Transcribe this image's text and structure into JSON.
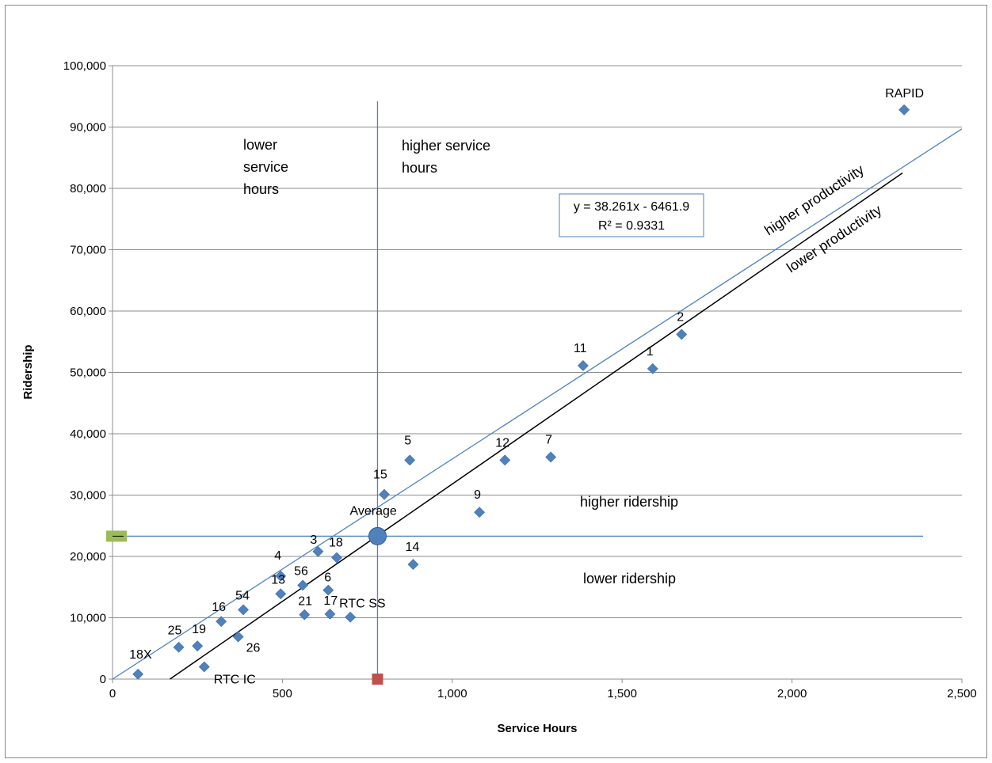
{
  "chart_data": {
    "type": "scatter",
    "xlabel": "Service Hours",
    "ylabel": "Ridership",
    "xlim": [
      0,
      2500
    ],
    "ylim": [
      0,
      100000
    ],
    "xticks": [
      0,
      500,
      1000,
      1500,
      2000,
      2500
    ],
    "xtick_labels": [
      "0",
      "500",
      "1,000",
      "1,500",
      "2,000",
      "2,500"
    ],
    "yticks": [
      0,
      10000,
      20000,
      30000,
      40000,
      50000,
      60000,
      70000,
      80000,
      90000,
      100000
    ],
    "ytick_labels": [
      "0",
      "10,000",
      "20,000",
      "30,000",
      "40,000",
      "50,000",
      "60,000",
      "70,000",
      "80,000",
      "90,000",
      "100,000"
    ],
    "grid": "horizontal",
    "colors": {
      "points": "#4f81bd",
      "reference_lines": "#4f81bd",
      "trendline": "#000000",
      "average_y_marker": "#9bbb59",
      "average_x_marker": "#c0504d"
    },
    "points": [
      {
        "label": "RAPID",
        "x": 2330,
        "y": 92800
      },
      {
        "label": "2",
        "x": 1675,
        "y": 56200
      },
      {
        "label": "1",
        "x": 1590,
        "y": 50600
      },
      {
        "label": "11",
        "x": 1385,
        "y": 51100
      },
      {
        "label": "7",
        "x": 1290,
        "y": 36200
      },
      {
        "label": "12",
        "x": 1155,
        "y": 35700
      },
      {
        "label": "9",
        "x": 1080,
        "y": 27200
      },
      {
        "label": "5",
        "x": 875,
        "y": 35700
      },
      {
        "label": "15",
        "x": 800,
        "y": 30100
      },
      {
        "label": "14",
        "x": 885,
        "y": 18700
      },
      {
        "label": "3",
        "x": 605,
        "y": 20800
      },
      {
        "label": "18",
        "x": 660,
        "y": 19800
      },
      {
        "label": "4",
        "x": 495,
        "y": 16800
      },
      {
        "label": "13",
        "x": 495,
        "y": 13900
      },
      {
        "label": "56",
        "x": 560,
        "y": 15300
      },
      {
        "label": "6",
        "x": 635,
        "y": 14500
      },
      {
        "label": "54",
        "x": 385,
        "y": 11300
      },
      {
        "label": "16",
        "x": 320,
        "y": 9400
      },
      {
        "label": "21",
        "x": 565,
        "y": 10500
      },
      {
        "label": "17",
        "x": 640,
        "y": 10600
      },
      {
        "label": "RTC SS",
        "x": 700,
        "y": 10100
      },
      {
        "label": "26",
        "x": 370,
        "y": 6900
      },
      {
        "label": "19",
        "x": 250,
        "y": 5400
      },
      {
        "label": "25",
        "x": 195,
        "y": 5200
      },
      {
        "label": "RTC IC",
        "x": 270,
        "y": 2000
      },
      {
        "label": "18X",
        "x": 75,
        "y": 800
      }
    ],
    "average": {
      "label": "Average",
      "x": 780,
      "y": 23300
    },
    "trendline": {
      "slope": 38.261,
      "intercept": -6461.9,
      "x_start": 169,
      "x_end": 2325
    },
    "upper_line": {
      "x_start": 0,
      "y_start": 0,
      "x_end": 2500,
      "y_end": 89700
    },
    "equation_text": "y = 38.261x - 6461.9",
    "r2_text": "R² = 0.9331",
    "annotations": {
      "lower_service_hours": [
        "lower",
        "service",
        "hours"
      ],
      "higher_service_hours": [
        "higher service",
        "hours"
      ],
      "higher_ridership": "higher ridership",
      "lower_ridership": "lower ridership",
      "higher_productivity": "higher productivity",
      "lower_productivity": "lower productivity"
    }
  }
}
